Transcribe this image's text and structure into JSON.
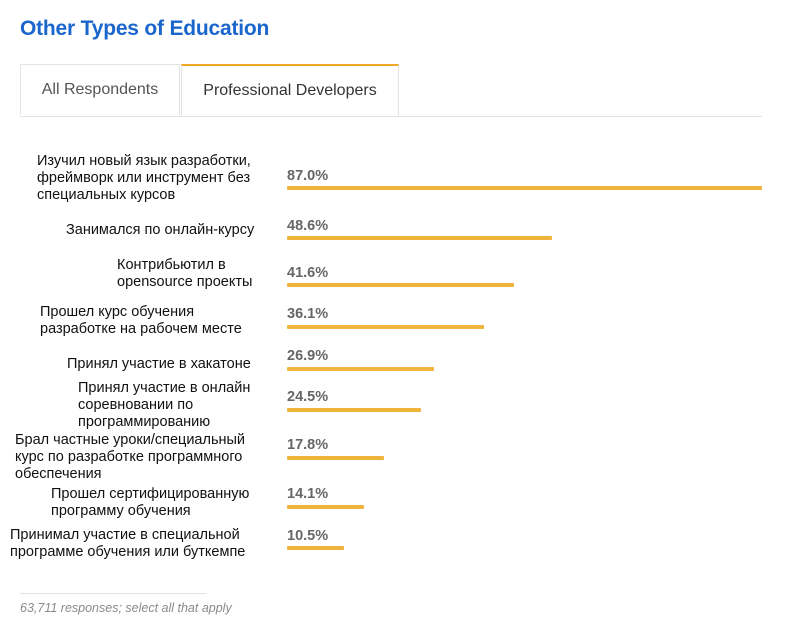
{
  "title": "Other Types of Education",
  "tabs": [
    {
      "label": "All Respondents",
      "active": false
    },
    {
      "label": "Professional Developers",
      "active": true
    }
  ],
  "accent_color": "#f0b43c",
  "title_color": "#1a66cc",
  "chart_data": {
    "type": "bar",
    "orientation": "horizontal",
    "categories": [
      "Изучил новый язык разработки,\nфреймворк или инструмент без\nспециальных курсов",
      "Занимался по онлайн-курсу",
      "Контрибьютил в\nopensource проекты",
      "Прошел курс обучения\nразработке на рабочем месте",
      "Принял участие в хакатоне",
      "Принял участие в онлайн\nсоревновании по\nпрограммированию",
      "Брал частные уроки/специальный\nкурс по разработке программного\nобеспечения",
      "Прошел сертифицированную\nпрограмму обучения",
      "Принимал участие в специальной\nпрограмме обучения или буткемпе"
    ],
    "values": [
      87.0,
      48.6,
      41.6,
      36.1,
      26.9,
      24.5,
      17.8,
      14.1,
      10.5
    ],
    "value_labels": [
      "87.0%",
      "48.6%",
      "41.6%",
      "36.1%",
      "26.9%",
      "24.5%",
      "17.8%",
      "14.1%",
      "10.5%"
    ],
    "xlim": [
      0,
      87.0
    ],
    "unit": "%"
  },
  "footer": {
    "note": "63,711 responses; select all that apply"
  }
}
